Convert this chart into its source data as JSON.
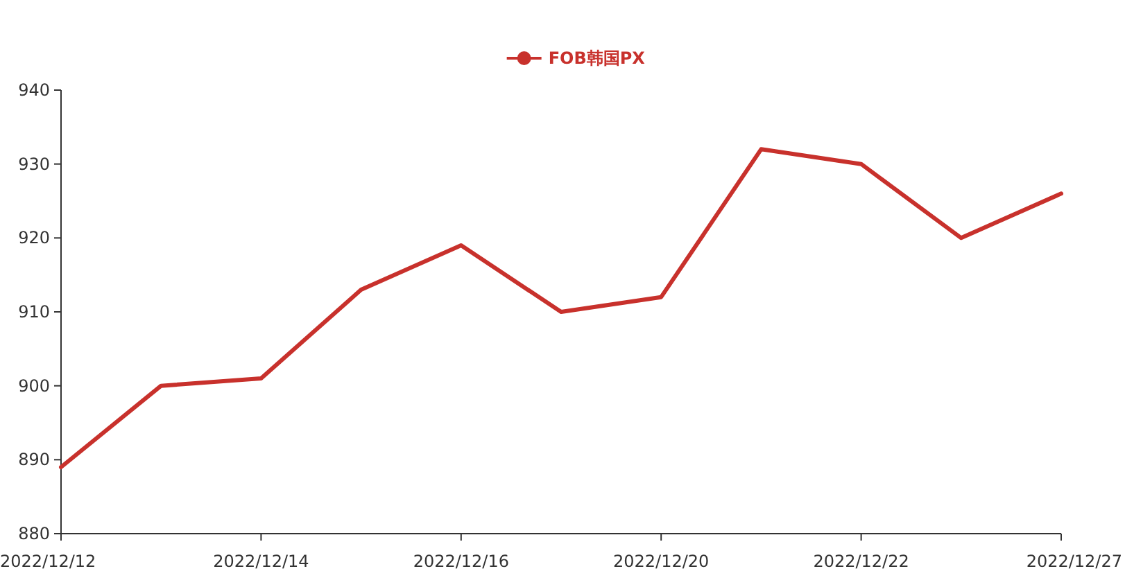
{
  "chart_data": {
    "type": "line",
    "categories": [
      "2022/12/12",
      null,
      "2022/12/14",
      null,
      "2022/12/16",
      null,
      "2022/12/20",
      null,
      "2022/12/22",
      null,
      "2022/12/27"
    ],
    "series": [
      {
        "name": "FOB韩国PX",
        "color": "#c8312c",
        "values": [
          889,
          900,
          901,
          913,
          919,
          910,
          912,
          932,
          930,
          920,
          926
        ]
      }
    ],
    "ylim": [
      880,
      940
    ],
    "yticks": [
      880,
      890,
      900,
      910,
      920,
      930,
      940
    ],
    "legend": "top",
    "grid": false
  }
}
